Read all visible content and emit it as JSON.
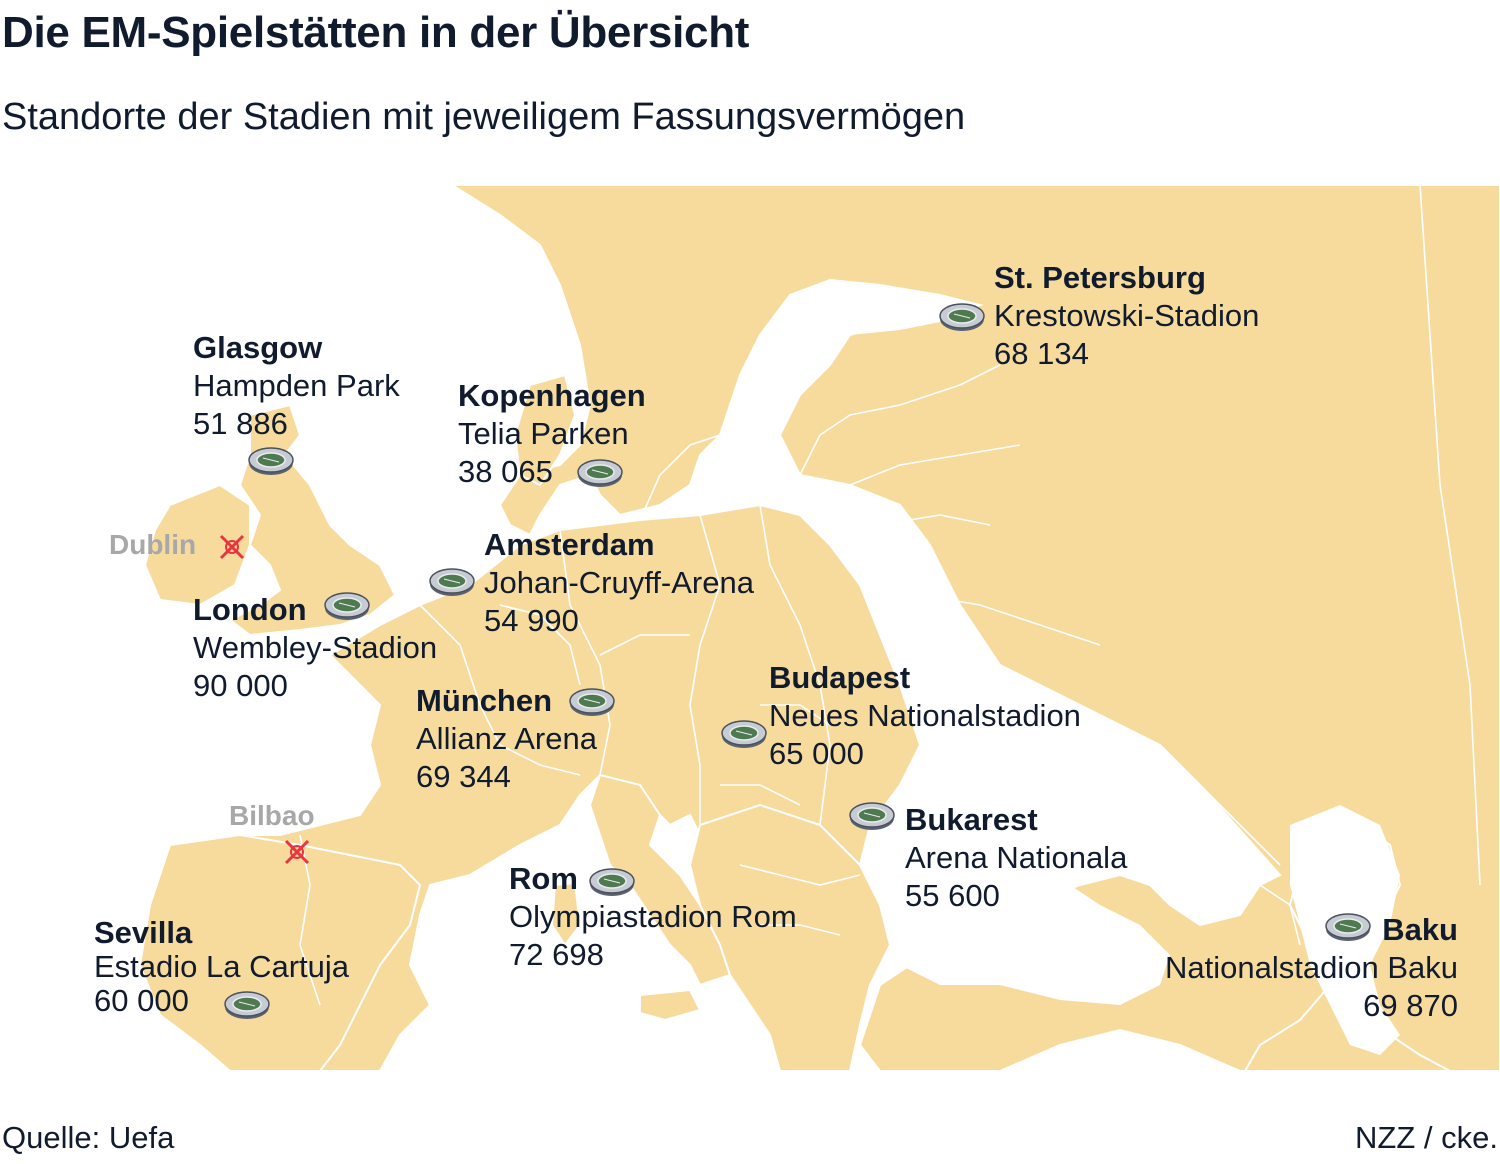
{
  "title": "Die EM-Spielstätten in der Übersicht",
  "subtitle": "Standorte der Stadien mit jeweiligem Fassungsvermögen",
  "source": "Quelle: Uefa",
  "credit": "NZZ / cke.",
  "colors": {
    "land": "#f7db9d",
    "borders": "#ffffff",
    "sea": "#ffffff",
    "text": "#111b2e",
    "cancelled": "#a8a8a8",
    "cross": "#e8353f"
  },
  "icons": {
    "venue": "stadium-icon",
    "cancelled_venue": "cross-icon"
  },
  "venues": [
    {
      "city": "St. Petersburg",
      "stadium": "Krestowski-Stadion",
      "capacity": "68 134"
    },
    {
      "city": "Glasgow",
      "stadium": "Hampden Park",
      "capacity": "51 886"
    },
    {
      "city": "Kopenhagen",
      "stadium": "Telia Parken",
      "capacity": "38 065"
    },
    {
      "city": "Amsterdam",
      "stadium": "Johan-Cruyff-Arena",
      "capacity": "54 990"
    },
    {
      "city": "London",
      "stadium": "Wembley-Stadion",
      "capacity": "90 000"
    },
    {
      "city": "München",
      "stadium": "Allianz Arena",
      "capacity": "69 344"
    },
    {
      "city": "Budapest",
      "stadium": "Neues Nationalstadion",
      "capacity": "65 000"
    },
    {
      "city": "Bukarest",
      "stadium": "Arena Nationala",
      "capacity": "55 600"
    },
    {
      "city": "Rom",
      "stadium": "Olympiastadion Rom",
      "capacity": "72 698"
    },
    {
      "city": "Sevilla",
      "stadium": "Estadio La Cartuja",
      "capacity": "60 000"
    },
    {
      "city": "Baku",
      "stadium": "Nationalstadion Baku",
      "capacity": "69 870"
    }
  ],
  "cancelled": [
    {
      "city": "Dublin"
    },
    {
      "city": "Bilbao"
    }
  ]
}
